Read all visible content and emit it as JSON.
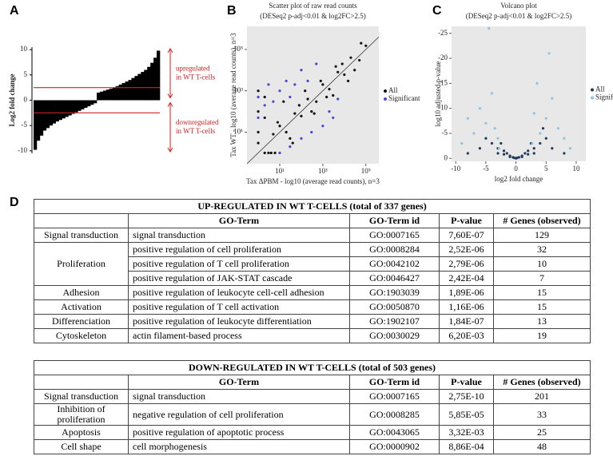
{
  "panel_labels": [
    "A",
    "B",
    "C",
    "D"
  ],
  "chart_data": [
    {
      "type": "bar",
      "ylabel": "Log2 fold change",
      "ylim": [
        -10.5,
        10.5
      ],
      "yticks": [
        -10,
        -5,
        0,
        5,
        10
      ],
      "color": "#000000",
      "values": [
        -9.8,
        -8,
        -7,
        -6,
        -5.5,
        -5,
        -4.6,
        -4.2,
        -3.9,
        -3.6,
        -3.3,
        -3,
        -2.7,
        -2.4,
        -2.1,
        -1.8,
        -1.5,
        -1.2,
        -0.9,
        -0.6,
        1.5,
        1.7,
        1.9,
        2.1,
        2.3,
        2.5,
        2.8,
        3.1,
        3.4,
        3.7,
        4,
        4.4,
        4.8,
        5.2,
        5.6,
        6,
        6.6,
        7.4,
        8.4,
        9.8
      ],
      "hlines": [
        2.5,
        -2.5
      ],
      "hline_color": "#d62020",
      "annotations": [
        [
          "upregulated",
          "in WT T-cells"
        ],
        [
          "downregulated",
          "in WT T-cells"
        ]
      ]
    },
    {
      "type": "scatter",
      "title": "Scatter plot of raw read counts",
      "subtitle": "(DESeq2 p-adj<0.01 & log2FC>2.5)",
      "xlabel": "Tax ΔPBM - log10 (average read counts), n=3",
      "ylabel": "Tax WT - log10 (average read counts), n=3",
      "xscale": "log",
      "yscale": "log",
      "xlim": [
        0.3,
        400000
      ],
      "ylim": [
        0.3,
        1300000
      ],
      "diagonal": true,
      "background": "#e8e8e8",
      "xticks": [
        {
          "value": 10,
          "label": "10¹"
        },
        {
          "value": 1000,
          "label": "10³"
        },
        {
          "value": 100000,
          "label": "10⁵"
        }
      ],
      "yticks": [
        {
          "value": 10,
          "label": "10¹"
        },
        {
          "value": 1000,
          "label": "10³"
        },
        {
          "value": 100000,
          "label": "10⁵"
        }
      ],
      "legend": "right",
      "series": [
        {
          "name": "All",
          "color": "#111111",
          "x": [
            1,
            2,
            5,
            10,
            20,
            50,
            100,
            200,
            500,
            1000,
            2000,
            5000,
            10000,
            20000,
            50000,
            100000,
            3,
            8,
            30,
            80,
            300,
            800,
            3000,
            8000,
            30000,
            1,
            1,
            1,
            2,
            2,
            4,
            6,
            15,
            40,
            150,
            400,
            1500,
            4000,
            15000,
            60000
          ],
          "values": [
            3,
            1,
            8,
            20,
            10,
            80,
            60,
            400,
            300,
            2000,
            1200,
            8000,
            6000,
            40000,
            30000,
            150000,
            1,
            30,
            5,
            200,
            100,
            3000,
            600,
            20000,
            10000,
            10,
            100,
            1000,
            50,
            500,
            1,
            1,
            300,
            3,
            1000,
            80,
            500,
            15000,
            3000,
            200000
          ]
        },
        {
          "name": "Significant",
          "color": "#4848d0",
          "x": [
            1,
            1,
            2,
            3,
            5,
            10,
            20,
            30,
            50,
            100,
            200,
            500,
            10,
            30,
            100,
            300,
            1000,
            3000,
            2000,
            5000
          ],
          "values": [
            50,
            500,
            200,
            2000,
            300,
            1000,
            3000,
            500,
            2000,
            10000,
            3000,
            20000,
            1,
            2,
            5,
            10,
            20,
            50,
            100,
            400
          ]
        }
      ]
    },
    {
      "type": "scatter",
      "title": "Volcano plot",
      "subtitle": "(DESeq2 p-adj<0.01 & log2FC>2.5)",
      "xlabel": "log2 fold change",
      "ylabel": "log10 adjusted p-value",
      "xlim": [
        -10.7,
        11.6
      ],
      "ylim": [
        0.6,
        -26.4
      ],
      "background": "#e8e8e8",
      "xticks": [
        -10,
        -5,
        0,
        5,
        10
      ],
      "yticks": [
        0,
        -5,
        -10,
        -15,
        -20,
        -25
      ],
      "legend": "right",
      "series": [
        {
          "name": "All",
          "color": "#1f3a5a",
          "x": [
            -8,
            -6,
            -5,
            -4,
            -3,
            -2.5,
            -2,
            -1.5,
            -1,
            -0.5,
            0,
            0.5,
            1,
            1.5,
            2,
            2.5,
            3,
            4,
            5,
            6,
            8,
            -3,
            -1,
            1,
            3,
            0.2,
            -0.3,
            2,
            -2,
            4.5
          ],
          "values": [
            -1,
            -2,
            -4,
            -3,
            -2,
            -3,
            -1.5,
            -1,
            -0.5,
            -0.2,
            0,
            -0.2,
            -0.5,
            -1,
            -1.5,
            -3,
            -2,
            -3,
            -4,
            -2,
            -1,
            -1,
            -0.3,
            -0.3,
            -1,
            -0.1,
            -0.1,
            -0.8,
            -0.8,
            -6
          ]
        },
        {
          "name": "Signifi",
          "color": "#8fc3e6",
          "x": [
            -9,
            -7,
            -6,
            -5,
            -4,
            -3.5,
            -3,
            4,
            5,
            6,
            7,
            8,
            9,
            3.5,
            -2.8,
            5.5,
            3,
            -8,
            2.7,
            -4.5
          ],
          "values": [
            -3,
            -5,
            -10,
            -7,
            -13,
            -6,
            -4,
            -5,
            -8,
            -12,
            -6,
            -4,
            -2,
            -15,
            -2,
            -21,
            -9,
            -8,
            -3,
            -26
          ]
        }
      ]
    }
  ],
  "tables": [
    {
      "title": "UP-REGULATED IN WT T-CELLS  (total of 337 genes)",
      "header": [
        "GO-Term",
        "GO-Term id",
        "P-value",
        "# Genes (observed)"
      ],
      "groups": [
        {
          "category": "Signal transduction",
          "rows": [
            [
              "signal transduction",
              "GO:0007165",
              "7,60E-07",
              "129"
            ]
          ]
        },
        {
          "category": "Proliferation",
          "rows": [
            [
              "positive regulation of cell proliferation",
              "GO:0008284",
              "2,52E-06",
              "32"
            ],
            [
              "positive regulation of T cell proliferation",
              "GO:0042102",
              "2,79E-06",
              "10"
            ],
            [
              "positive regulation of JAK-STAT cascade",
              "GO:0046427",
              "2,42E-04",
              "7"
            ]
          ]
        },
        {
          "category": "Adhesion",
          "rows": [
            [
              "positive regulation of leukocyte cell-cell adhesion",
              "GO:1903039",
              "1,89E-06",
              "15"
            ]
          ]
        },
        {
          "category": "Activation",
          "rows": [
            [
              "positive regulation of T cell activation",
              "GO:0050870",
              "1,16E-06",
              "15"
            ]
          ]
        },
        {
          "category": "Differenciation",
          "rows": [
            [
              "positive regulation of leukocyte differentiation",
              "GO:1902107",
              "1,84E-07",
              "13"
            ]
          ]
        },
        {
          "category": "Cytoskeleton",
          "rows": [
            [
              "actin filament-based process",
              "GO:0030029",
              "6,20E-03",
              "19"
            ]
          ]
        }
      ]
    },
    {
      "title": "DOWN-REGULATED IN WT T-CELLS (total of 503 genes)",
      "header": [
        "GO-Term",
        "GO-Term id",
        "P-value",
        "# Genes (observed)"
      ],
      "groups": [
        {
          "category": "Signal transduction",
          "rows": [
            [
              "signal transduction",
              "GO:0007165",
              "2,75E-10",
              "201"
            ]
          ]
        },
        {
          "category": "Inhibition of proliferation",
          "rows": [
            [
              "negative regulation of cell proliferation",
              "GO:0008285",
              "5,85E-05",
              "33"
            ]
          ]
        },
        {
          "category": "Apoptosis",
          "rows": [
            [
              "positive regulation of apoptotic process",
              "GO:0043065",
              "3,32E-03",
              "25"
            ]
          ]
        },
        {
          "category": "Cell shape",
          "rows": [
            [
              "cell morphogenesis",
              "GO:0000902",
              "8,86E-04",
              "48"
            ]
          ]
        }
      ]
    }
  ]
}
